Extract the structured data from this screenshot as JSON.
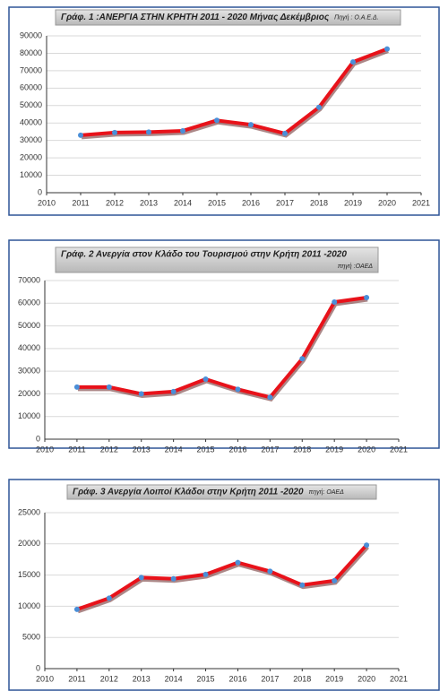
{
  "chart_data": [
    {
      "type": "line",
      "title": "Γράφ. 1 :ΑΝΕΡΓΙΑ ΣΤΗΝ ΚΡΗΤΗ 2011 - 2020 Μήνας Δεκέμβριος",
      "source": "Πηγή : Ο.Α.Ε.Δ.",
      "x": [
        2011,
        2012,
        2013,
        2014,
        2015,
        2016,
        2017,
        2018,
        2019,
        2020
      ],
      "values": [
        33000,
        34500,
        34800,
        35500,
        41500,
        39000,
        34000,
        49000,
        75000,
        82500
      ],
      "color": "#e8121a",
      "marker_color": "#4a8fd8",
      "xlim": [
        2010,
        2021
      ],
      "xticks": [
        2010,
        2011,
        2012,
        2013,
        2014,
        2015,
        2016,
        2017,
        2018,
        2019,
        2020,
        2021
      ],
      "ylim": [
        0,
        90000
      ],
      "yticks": [
        0,
        10000,
        20000,
        30000,
        40000,
        50000,
        60000,
        70000,
        80000,
        90000
      ],
      "grid": true
    },
    {
      "type": "line",
      "title": "Γράφ. 2 Ανεργία στον Κλάδο του Τουρισμού στην Κρήτη 2011 -2020",
      "source": "πηγή :ΟΑΕΔ",
      "x": [
        2011,
        2012,
        2013,
        2014,
        2015,
        2016,
        2017,
        2018,
        2019,
        2020
      ],
      "values": [
        23000,
        23000,
        20000,
        21000,
        26500,
        22000,
        18500,
        35500,
        60500,
        62500
      ],
      "color": "#e8121a",
      "marker_color": "#4a8fd8",
      "xlim": [
        2010,
        2021
      ],
      "xticks": [
        2010,
        2011,
        2012,
        2013,
        2014,
        2015,
        2016,
        2017,
        2018,
        2019,
        2020,
        2021
      ],
      "ylim": [
        0,
        70000
      ],
      "yticks": [
        0,
        10000,
        20000,
        30000,
        40000,
        50000,
        60000,
        70000
      ],
      "grid": true
    },
    {
      "type": "line",
      "title": "Γράφ. 3 Ανεργία Λοιποί Κλάδοι στην Κρήτη 2011 -2020",
      "source": "πηγή: ΟΑΕΔ",
      "x": [
        2011,
        2012,
        2013,
        2014,
        2015,
        2016,
        2017,
        2018,
        2019,
        2020
      ],
      "values": [
        9500,
        11300,
        14600,
        14400,
        15100,
        17000,
        15600,
        13400,
        14100,
        19800
      ],
      "color": "#e8121a",
      "marker_color": "#4a8fd8",
      "xlim": [
        2010,
        2021
      ],
      "xticks": [
        2010,
        2011,
        2012,
        2013,
        2014,
        2015,
        2016,
        2017,
        2018,
        2019,
        2020,
        2021
      ],
      "ylim": [
        0,
        25000
      ],
      "yticks": [
        0,
        5000,
        10000,
        15000,
        20000,
        25000
      ],
      "grid": true
    }
  ]
}
